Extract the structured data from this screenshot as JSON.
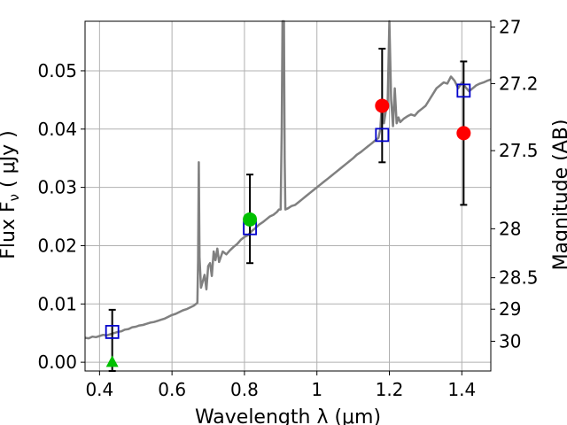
{
  "chart_data": {
    "type": "scatter",
    "xlabel": "Wavelength  λ (μm)",
    "ylabel": "Flux  F",
    "ylabel_sub": "ν",
    "ylabel_unit": "  ( μJy )",
    "y2label": "Magnitude (AB)",
    "xlim": [
      0.36,
      1.48
    ],
    "ylim": [
      -0.0015,
      0.0585
    ],
    "grid": true,
    "xticks": [
      0.4,
      0.6,
      0.8,
      1.0,
      1.2,
      1.4
    ],
    "xtick_labels": [
      "0.4",
      "0.6",
      "0.8",
      "1",
      "1.2",
      "1.4"
    ],
    "yticks": [
      0.0,
      0.01,
      0.02,
      0.03,
      0.04,
      0.05
    ],
    "ytick_labels": [
      "0.00",
      "0.01",
      "0.02",
      "0.03",
      "0.04",
      "0.05"
    ],
    "y2ticks": [
      {
        "label": "27",
        "flux": 0.0575
      },
      {
        "label": "27.2",
        "flux": 0.0478
      },
      {
        "label": "27.5",
        "flux": 0.0363
      },
      {
        "label": "28",
        "flux": 0.0229
      },
      {
        "label": "28.5",
        "flux": 0.0145
      },
      {
        "label": "29",
        "flux": 0.0091
      },
      {
        "label": "30",
        "flux": 0.0036
      }
    ],
    "colors": {
      "spectrum": "#808080",
      "model_box": "#0000cc",
      "red_point": "#ff0000",
      "green_point": "#00c000",
      "errorbar": "#000000",
      "grid": "#b0b0b0"
    },
    "spectrum": [
      [
        0.36,
        0.0042
      ],
      [
        0.37,
        0.0041
      ],
      [
        0.38,
        0.0044
      ],
      [
        0.39,
        0.0043
      ],
      [
        0.4,
        0.0045
      ],
      [
        0.41,
        0.0047
      ],
      [
        0.42,
        0.0046
      ],
      [
        0.43,
        0.0048
      ],
      [
        0.44,
        0.005
      ],
      [
        0.45,
        0.0052
      ],
      [
        0.46,
        0.0053
      ],
      [
        0.47,
        0.0056
      ],
      [
        0.48,
        0.0057
      ],
      [
        0.49,
        0.006
      ],
      [
        0.5,
        0.0061
      ],
      [
        0.51,
        0.0063
      ],
      [
        0.52,
        0.0064
      ],
      [
        0.53,
        0.0066
      ],
      [
        0.54,
        0.0068
      ],
      [
        0.55,
        0.0069
      ],
      [
        0.56,
        0.0071
      ],
      [
        0.57,
        0.0073
      ],
      [
        0.58,
        0.0075
      ],
      [
        0.59,
        0.0078
      ],
      [
        0.6,
        0.0081
      ],
      [
        0.61,
        0.0083
      ],
      [
        0.62,
        0.0086
      ],
      [
        0.63,
        0.0089
      ],
      [
        0.64,
        0.0091
      ],
      [
        0.65,
        0.0094
      ],
      [
        0.66,
        0.0097
      ],
      [
        0.67,
        0.0102
      ],
      [
        0.672,
        0.0175
      ],
      [
        0.674,
        0.0343
      ],
      [
        0.676,
        0.018
      ],
      [
        0.68,
        0.0128
      ],
      [
        0.69,
        0.015
      ],
      [
        0.695,
        0.0125
      ],
      [
        0.7,
        0.0165
      ],
      [
        0.705,
        0.017
      ],
      [
        0.71,
        0.0148
      ],
      [
        0.715,
        0.019
      ],
      [
        0.72,
        0.0175
      ],
      [
        0.725,
        0.0195
      ],
      [
        0.73,
        0.0172
      ],
      [
        0.74,
        0.019
      ],
      [
        0.75,
        0.0185
      ],
      [
        0.76,
        0.0192
      ],
      [
        0.77,
        0.0198
      ],
      [
        0.78,
        0.0203
      ],
      [
        0.79,
        0.021
      ],
      [
        0.8,
        0.0215
      ],
      [
        0.81,
        0.0218
      ],
      [
        0.82,
        0.0225
      ],
      [
        0.83,
        0.023
      ],
      [
        0.84,
        0.0236
      ],
      [
        0.85,
        0.024
      ],
      [
        0.86,
        0.0245
      ],
      [
        0.87,
        0.025
      ],
      [
        0.88,
        0.0253
      ],
      [
        0.89,
        0.0258
      ],
      [
        0.895,
        0.0262
      ],
      [
        0.9,
        0.0262
      ],
      [
        0.903,
        0.04
      ],
      [
        0.905,
        0.059
      ],
      [
        0.909,
        0.059
      ],
      [
        0.911,
        0.035
      ],
      [
        0.913,
        0.0262
      ],
      [
        0.92,
        0.0264
      ],
      [
        0.93,
        0.0268
      ],
      [
        0.94,
        0.027
      ],
      [
        0.95,
        0.0275
      ],
      [
        0.96,
        0.028
      ],
      [
        0.97,
        0.0285
      ],
      [
        0.98,
        0.029
      ],
      [
        0.99,
        0.0295
      ],
      [
        1.0,
        0.03
      ],
      [
        1.01,
        0.0305
      ],
      [
        1.02,
        0.031
      ],
      [
        1.03,
        0.0315
      ],
      [
        1.04,
        0.032
      ],
      [
        1.05,
        0.0325
      ],
      [
        1.06,
        0.033
      ],
      [
        1.07,
        0.0335
      ],
      [
        1.08,
        0.034
      ],
      [
        1.09,
        0.0345
      ],
      [
        1.1,
        0.035
      ],
      [
        1.11,
        0.0356
      ],
      [
        1.12,
        0.036
      ],
      [
        1.13,
        0.0365
      ],
      [
        1.14,
        0.037
      ],
      [
        1.15,
        0.0375
      ],
      [
        1.16,
        0.038
      ],
      [
        1.17,
        0.0385
      ],
      [
        1.175,
        0.04
      ],
      [
        1.18,
        0.045
      ],
      [
        1.185,
        0.041
      ],
      [
        1.19,
        0.043
      ],
      [
        1.195,
        0.044
      ],
      [
        1.2,
        0.059
      ],
      [
        1.205,
        0.045
      ],
      [
        1.21,
        0.0405
      ],
      [
        1.215,
        0.047
      ],
      [
        1.22,
        0.041
      ],
      [
        1.225,
        0.042
      ],
      [
        1.23,
        0.0412
      ],
      [
        1.24,
        0.0418
      ],
      [
        1.25,
        0.0422
      ],
      [
        1.26,
        0.0425
      ],
      [
        1.27,
        0.0423
      ],
      [
        1.28,
        0.043
      ],
      [
        1.29,
        0.0435
      ],
      [
        1.3,
        0.044
      ],
      [
        1.31,
        0.045
      ],
      [
        1.32,
        0.046
      ],
      [
        1.33,
        0.047
      ],
      [
        1.34,
        0.0475
      ],
      [
        1.35,
        0.048
      ],
      [
        1.36,
        0.0478
      ],
      [
        1.37,
        0.049
      ],
      [
        1.38,
        0.0483
      ],
      [
        1.39,
        0.047
      ],
      [
        1.4,
        0.048
      ],
      [
        1.41,
        0.0472
      ],
      [
        1.42,
        0.0465
      ],
      [
        1.43,
        0.047
      ],
      [
        1.44,
        0.0475
      ],
      [
        1.45,
        0.0478
      ],
      [
        1.46,
        0.048
      ],
      [
        1.47,
        0.0483
      ],
      [
        1.48,
        0.0485
      ]
    ],
    "model_points": [
      {
        "x": 0.435,
        "y": 0.0052
      },
      {
        "x": 0.815,
        "y": 0.023
      },
      {
        "x": 1.18,
        "y": 0.039
      },
      {
        "x": 1.405,
        "y": 0.0466
      }
    ],
    "observed_points": [
      {
        "x": 0.435,
        "y": -0.0005,
        "ylow": -0.0015,
        "yhigh": 0.009,
        "color": "green",
        "marker": "triangle"
      },
      {
        "x": 0.815,
        "y": 0.0245,
        "ylow": 0.017,
        "yhigh": 0.0322,
        "color": "green",
        "marker": "circle"
      },
      {
        "x": 1.18,
        "y": 0.044,
        "ylow": 0.0343,
        "yhigh": 0.0538,
        "color": "red",
        "marker": "circle"
      },
      {
        "x": 1.405,
        "y": 0.0393,
        "ylow": 0.027,
        "yhigh": 0.0516,
        "color": "red",
        "marker": "circle"
      }
    ]
  }
}
